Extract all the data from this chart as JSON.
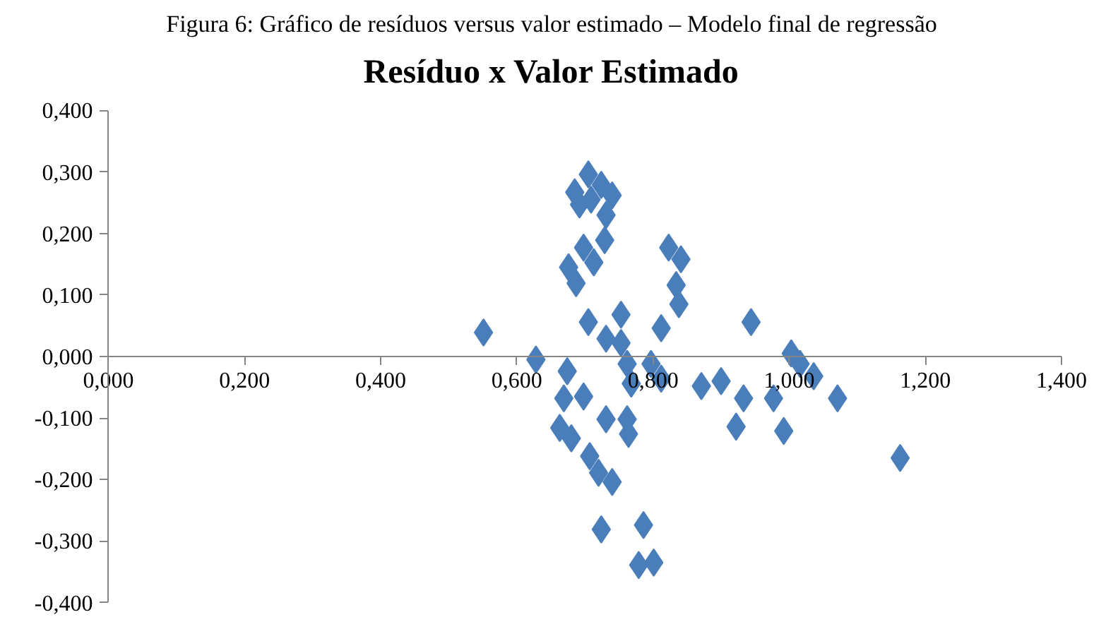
{
  "chart_data": {
    "type": "scatter",
    "title": "Resíduo x Valor Estimado",
    "annotations": [
      "Figura 6: Gráfico de resíduos versus valor estimado – Modelo final de regressão"
    ],
    "marker": "diamond",
    "grid": false,
    "xlim": [
      0,
      1.4
    ],
    "ylim": [
      -0.4,
      0.4
    ],
    "xticks": [
      {
        "value": 0,
        "label": "0,000"
      },
      {
        "value": 0.2,
        "label": "0,200"
      },
      {
        "value": 0.4,
        "label": "0,400"
      },
      {
        "value": 0.6,
        "label": "0,600"
      },
      {
        "value": 0.8,
        "label": "0,800"
      },
      {
        "value": 1.0,
        "label": "1,000"
      },
      {
        "value": 1.2,
        "label": "1,200"
      },
      {
        "value": 1.4,
        "label": "1,400"
      }
    ],
    "yticks": [
      {
        "value": -0.4,
        "label": "-0,400"
      },
      {
        "value": -0.3,
        "label": "-0,300"
      },
      {
        "value": -0.2,
        "label": "-0,200"
      },
      {
        "value": -0.1,
        "label": "-0,100"
      },
      {
        "value": 0,
        "label": "0,000"
      },
      {
        "value": 0.1,
        "label": "0,100"
      },
      {
        "value": 0.2,
        "label": "0,200"
      },
      {
        "value": 0.3,
        "label": "0,300"
      },
      {
        "value": 0.4,
        "label": "0,400"
      }
    ],
    "series": [
      {
        "color": "#4a7ebb",
        "x": [
          0.551,
          0.628,
          0.705,
          0.685,
          0.724,
          0.74,
          0.692,
          0.731,
          0.709,
          0.729,
          0.698,
          0.713,
          0.676,
          0.687,
          0.823,
          0.841,
          0.834,
          0.838,
          0.705,
          0.753,
          0.812,
          0.731,
          0.753,
          0.674,
          0.762,
          0.797,
          0.812,
          0.768,
          0.669,
          0.698,
          0.731,
          0.762,
          0.764,
          0.663,
          0.68,
          0.707,
          0.72,
          0.74,
          0.724,
          0.786,
          0.779,
          0.801,
          0.871,
          0.9,
          0.944,
          1.003,
          1.016,
          1.036,
          1.071,
          0.977,
          0.933,
          0.992,
          1.163,
          0.922
        ],
        "values": [
          0.039,
          -0.005,
          0.296,
          0.267,
          0.279,
          0.262,
          0.247,
          0.23,
          0.255,
          0.189,
          0.177,
          0.153,
          0.145,
          0.119,
          0.177,
          0.158,
          0.116,
          0.085,
          0.056,
          0.068,
          0.046,
          0.029,
          0.022,
          -0.024,
          -0.012,
          -0.012,
          -0.036,
          -0.044,
          -0.068,
          -0.065,
          -0.102,
          -0.102,
          -0.126,
          -0.116,
          -0.133,
          -0.162,
          -0.189,
          -0.204,
          -0.281,
          -0.274,
          -0.339,
          -0.335,
          -0.048,
          -0.04,
          0.056,
          0.005,
          -0.012,
          -0.032,
          -0.068,
          -0.068,
          -0.068,
          -0.121,
          -0.165,
          -0.114
        ]
      }
    ]
  }
}
